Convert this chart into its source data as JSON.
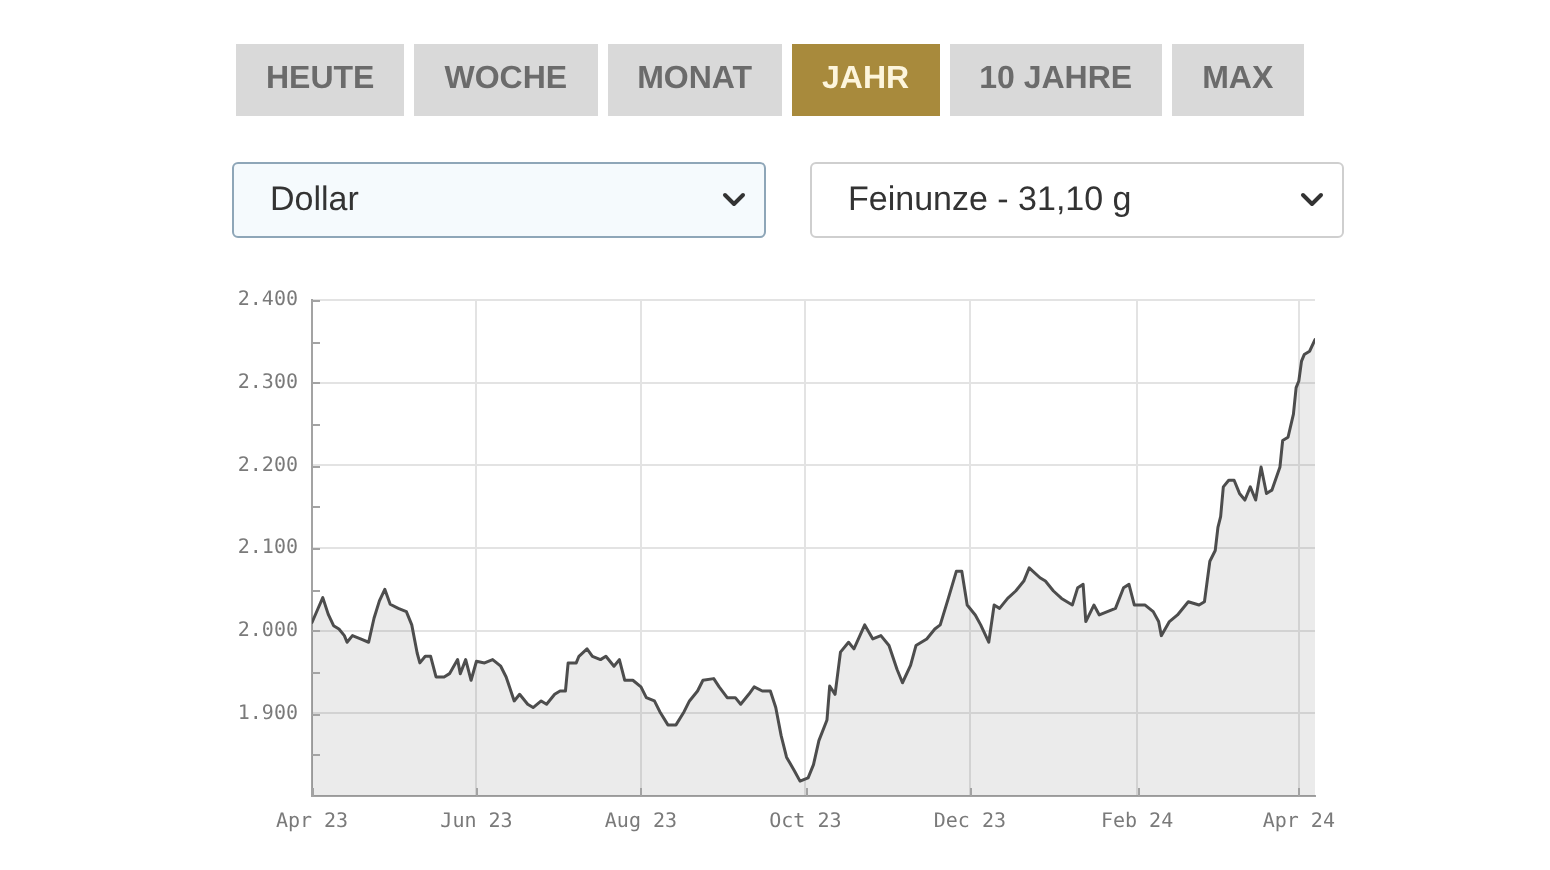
{
  "chart_data": {
    "type": "area",
    "annotations": [
      "HEUTE",
      "WOCHE",
      "MONAT",
      "JAHR",
      "10 JAHRE",
      "MAX",
      "Dollar",
      "Feinunze - 31,10 g"
    ],
    "x": [
      "2023-04-01",
      "2023-04-03",
      "2023-04-05",
      "2023-04-07",
      "2023-04-09",
      "2023-04-11",
      "2023-04-13",
      "2023-04-14",
      "2023-04-16",
      "2023-04-19",
      "2023-04-22",
      "2023-04-24",
      "2023-04-26",
      "2023-04-28",
      "2023-04-30",
      "2023-05-03",
      "2023-05-06",
      "2023-05-08",
      "2023-05-10",
      "2023-05-11",
      "2023-05-13",
      "2023-05-15",
      "2023-05-17",
      "2023-05-20",
      "2023-05-22",
      "2023-05-25",
      "2023-05-26",
      "2023-05-28",
      "2023-05-30",
      "2023-06-01",
      "2023-06-04",
      "2023-06-07",
      "2023-06-10",
      "2023-06-12",
      "2023-06-15",
      "2023-06-17",
      "2023-06-20",
      "2023-06-22",
      "2023-06-25",
      "2023-06-27",
      "2023-06-30",
      "2023-07-02",
      "2023-07-04",
      "2023-07-05",
      "2023-07-08",
      "2023-07-09",
      "2023-07-12",
      "2023-07-14",
      "2023-07-17",
      "2023-07-19",
      "2023-07-22",
      "2023-07-24",
      "2023-07-26",
      "2023-07-29",
      "2023-08-01",
      "2023-08-03",
      "2023-08-06",
      "2023-08-08",
      "2023-08-11",
      "2023-08-14",
      "2023-08-17",
      "2023-08-19",
      "2023-08-22",
      "2023-08-24",
      "2023-08-28",
      "2023-08-30",
      "2023-09-02",
      "2023-09-05",
      "2023-09-07",
      "2023-09-10",
      "2023-09-12",
      "2023-09-15",
      "2023-09-18",
      "2023-09-20",
      "2023-09-22",
      "2023-09-24",
      "2023-09-27",
      "2023-09-29",
      "2023-10-02",
      "2023-10-04",
      "2023-10-06",
      "2023-10-09",
      "2023-10-10",
      "2023-10-12",
      "2023-10-14",
      "2023-10-17",
      "2023-10-19",
      "2023-10-23",
      "2023-10-26",
      "2023-10-29",
      "2023-11-01",
      "2023-11-04",
      "2023-11-06",
      "2023-11-09",
      "2023-11-11",
      "2023-11-15",
      "2023-11-18",
      "2023-11-20",
      "2023-11-23",
      "2023-11-26",
      "2023-11-28",
      "2023-11-30",
      "2023-12-03",
      "2023-12-05",
      "2023-12-08",
      "2023-12-10",
      "2023-12-12",
      "2023-12-15",
      "2023-12-18",
      "2023-12-21",
      "2023-12-23",
      "2023-12-27",
      "2023-12-29",
      "2024-01-01",
      "2024-01-04",
      "2024-01-08",
      "2024-01-10",
      "2024-01-12",
      "2024-01-13",
      "2024-01-16",
      "2024-01-18",
      "2024-01-21",
      "2024-01-24",
      "2024-01-27",
      "2024-01-29",
      "2024-01-31",
      "2024-02-04",
      "2024-02-07",
      "2024-02-09",
      "2024-02-10",
      "2024-02-13",
      "2024-02-16",
      "2024-02-20",
      "2024-02-24",
      "2024-02-26",
      "2024-02-28",
      "2024-03-01",
      "2024-03-02",
      "2024-03-03",
      "2024-03-04",
      "2024-03-06",
      "2024-03-08",
      "2024-03-10",
      "2024-03-12",
      "2024-03-14",
      "2024-03-16",
      "2024-03-18",
      "2024-03-20",
      "2024-03-22",
      "2024-03-25",
      "2024-03-26",
      "2024-03-28",
      "2024-03-30",
      "2024-03-31",
      "2024-04-01",
      "2024-04-02",
      "2024-04-03",
      "2024-04-05",
      "2024-04-07"
    ],
    "values": [
      2010,
      2025,
      2040,
      2020,
      2006,
      2002,
      1994,
      1986,
      1994,
      1990,
      1986,
      2015,
      2036,
      2050,
      2032,
      2027,
      2023,
      2007,
      1973,
      1961,
      1969,
      1969,
      1944,
      1944,
      1948,
      1965,
      1948,
      1965,
      1940,
      1963,
      1961,
      1965,
      1957,
      1944,
      1915,
      1923,
      1911,
      1907,
      1915,
      1911,
      1923,
      1927,
      1927,
      1961,
      1961,
      1969,
      1978,
      1969,
      1965,
      1969,
      1957,
      1965,
      1940,
      1940,
      1932,
      1919,
      1915,
      1902,
      1886,
      1886,
      1902,
      1915,
      1927,
      1940,
      1942,
      1932,
      1919,
      1919,
      1911,
      1923,
      1932,
      1927,
      1927,
      1907,
      1873,
      1847,
      1830,
      1818,
      1822,
      1838,
      1867,
      1892,
      1933,
      1923,
      1974,
      1986,
      1978,
      2007,
      1990,
      1994,
      1982,
      1953,
      1937,
      1958,
      1982,
      1990,
      2002,
      2007,
      2039,
      2072,
      2072,
      2031,
      2019,
      2007,
      1986,
      2031,
      2027,
      2039,
      2048,
      2060,
      2076,
      2064,
      2060,
      2048,
      2039,
      2031,
      2052,
      2056,
      2011,
      2031,
      2019,
      2023,
      2027,
      2052,
      2056,
      2031,
      2031,
      2023,
      2011,
      1994,
      2011,
      2019,
      2035,
      2031,
      2035,
      2084,
      2097,
      2125,
      2138,
      2174,
      2182,
      2182,
      2166,
      2158,
      2174,
      2158,
      2198,
      2166,
      2170,
      2198,
      2230,
      2234,
      2262,
      2294,
      2302,
      2326,
      2334,
      2338,
      2352
    ],
    "color": "#4d4d4d",
    "xlim": [
      "2023-04-01",
      "2024-04-07"
    ],
    "xticks": [
      {
        "value": "2023-04-01",
        "label": "Apr 23"
      },
      {
        "value": "2023-06-01",
        "label": "Jun 23"
      },
      {
        "value": "2023-08-01",
        "label": "Aug 23"
      },
      {
        "value": "2023-10-01",
        "label": "Oct 23"
      },
      {
        "value": "2023-12-01",
        "label": "Dec 23"
      },
      {
        "value": "2024-02-01",
        "label": "Feb 24"
      },
      {
        "value": "2024-04-01",
        "label": "Apr 24"
      }
    ],
    "ylim": [
      1800,
      2400
    ],
    "yticks": [
      {
        "value": 1850,
        "label": null
      },
      {
        "value": 1900,
        "label": "1.900"
      },
      {
        "value": 1950,
        "label": null
      },
      {
        "value": 2000,
        "label": "2.000"
      },
      {
        "value": 2050,
        "label": null
      },
      {
        "value": 2100,
        "label": "2.100"
      },
      {
        "value": 2150,
        "label": null
      },
      {
        "value": 2200,
        "label": "2.200"
      },
      {
        "value": 2250,
        "label": null
      },
      {
        "value": 2300,
        "label": "2.300"
      },
      {
        "value": 2350,
        "label": null
      },
      {
        "value": 2400,
        "label": "2.400"
      }
    ],
    "grid": true,
    "marker": "none"
  }
}
